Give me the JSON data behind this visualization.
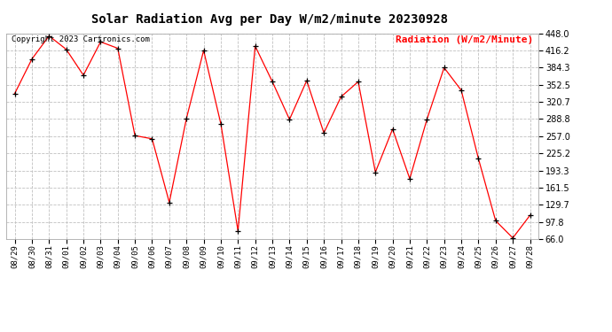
{
  "title": "Solar Radiation Avg per Day W/m2/minute 20230928",
  "copyright": "Copyright 2023 Cartronics.com",
  "legend_label": "Radiation (W/m2/Minute)",
  "dates": [
    "08/29",
    "08/30",
    "08/31",
    "09/01",
    "09/02",
    "09/03",
    "09/04",
    "09/05",
    "09/06",
    "09/07",
    "09/08",
    "09/09",
    "09/10",
    "09/11",
    "09/12",
    "09/13",
    "09/14",
    "09/15",
    "09/16",
    "09/17",
    "09/18",
    "09/19",
    "09/20",
    "09/21",
    "09/22",
    "09/23",
    "09/24",
    "09/25",
    "09/26",
    "09/27",
    "09/28"
  ],
  "values": [
    336,
    400,
    443,
    418,
    370,
    432,
    420,
    258,
    252,
    134,
    290,
    416,
    280,
    81,
    424,
    358,
    288,
    360,
    263,
    330,
    358,
    190,
    270,
    178,
    288,
    384,
    342,
    215,
    100,
    68,
    110
  ],
  "ymin": 66.0,
  "ymax": 448.0,
  "yticks": [
    66.0,
    97.8,
    129.7,
    161.5,
    193.3,
    225.2,
    257.0,
    288.8,
    320.7,
    352.5,
    384.3,
    416.2,
    448.0
  ],
  "line_color": "red",
  "marker": "+",
  "marker_color": "black",
  "grid_color": "#c0c0c0",
  "background_color": "#ffffff",
  "title_fontsize": 10,
  "copyright_fontsize": 6.5,
  "legend_fontsize": 8,
  "tick_fontsize": 6.5,
  "ytick_fontsize": 7
}
